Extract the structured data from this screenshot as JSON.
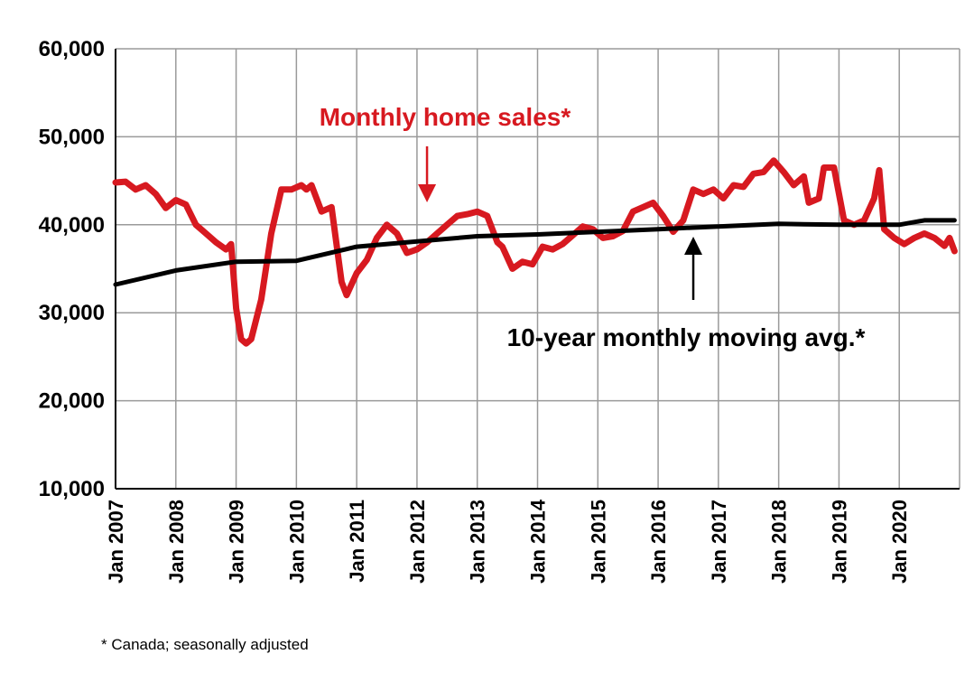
{
  "chart_data": {
    "type": "line",
    "title": "",
    "xlabel": "",
    "ylabel": "",
    "ylim": [
      10000,
      60000
    ],
    "grid": true,
    "x_start": "2007-01",
    "x_end": "2020-12",
    "y_ticks": [
      10000,
      20000,
      30000,
      40000,
      50000,
      60000
    ],
    "y_tick_labels": [
      "10,000",
      "20,000",
      "30,000",
      "40,000",
      "50,000",
      "60,000"
    ],
    "x_tick_labels": [
      "Jan 2007",
      "Jan 2008",
      "Jan 2009",
      "Jan 2010",
      "Jan 2011",
      "Jan 2012",
      "Jan 2013",
      "Jan 2014",
      "Jan 2015",
      "Jan 2016",
      "Jan 2017",
      "Jan 2018",
      "Jan 2019",
      "Jan 2020"
    ],
    "series": [
      {
        "name": "Monthly home sales*",
        "color": "#d71920",
        "points": [
          [
            "2007-01",
            44800
          ],
          [
            "2007-03",
            44900
          ],
          [
            "2007-05",
            44000
          ],
          [
            "2007-07",
            44500
          ],
          [
            "2007-09",
            43500
          ],
          [
            "2007-11",
            41900
          ],
          [
            "2008-01",
            42800
          ],
          [
            "2008-03",
            42300
          ],
          [
            "2008-05",
            40000
          ],
          [
            "2008-07",
            39000
          ],
          [
            "2008-09",
            38000
          ],
          [
            "2008-11",
            37200
          ],
          [
            "2008-12",
            37800
          ],
          [
            "2009-01",
            30500
          ],
          [
            "2009-02",
            27000
          ],
          [
            "2009-03",
            26500
          ],
          [
            "2009-04",
            27000
          ],
          [
            "2009-06",
            31500
          ],
          [
            "2009-08",
            39000
          ],
          [
            "2009-10",
            44000
          ],
          [
            "2009-12",
            44000
          ],
          [
            "2010-02",
            44500
          ],
          [
            "2010-03",
            44000
          ],
          [
            "2010-04",
            44500
          ],
          [
            "2010-06",
            41500
          ],
          [
            "2010-08",
            42000
          ],
          [
            "2010-10",
            33500
          ],
          [
            "2010-11",
            32000
          ],
          [
            "2011-01",
            34500
          ],
          [
            "2011-03",
            36000
          ],
          [
            "2011-05",
            38500
          ],
          [
            "2011-07",
            40000
          ],
          [
            "2011-09",
            39000
          ],
          [
            "2011-11",
            36800
          ],
          [
            "2012-01",
            37200
          ],
          [
            "2012-03",
            38000
          ],
          [
            "2012-05",
            39000
          ],
          [
            "2012-07",
            40000
          ],
          [
            "2012-09",
            41000
          ],
          [
            "2012-11",
            41200
          ],
          [
            "2013-01",
            41500
          ],
          [
            "2013-03",
            41000
          ],
          [
            "2013-05",
            38000
          ],
          [
            "2013-06",
            37500
          ],
          [
            "2013-08",
            35000
          ],
          [
            "2013-10",
            35800
          ],
          [
            "2013-12",
            35500
          ],
          [
            "2014-02",
            37500
          ],
          [
            "2014-04",
            37200
          ],
          [
            "2014-06",
            37800
          ],
          [
            "2014-08",
            38800
          ],
          [
            "2014-10",
            39800
          ],
          [
            "2014-12",
            39500
          ],
          [
            "2015-02",
            38500
          ],
          [
            "2015-04",
            38700
          ],
          [
            "2015-06",
            39300
          ],
          [
            "2015-08",
            41500
          ],
          [
            "2015-10",
            42000
          ],
          [
            "2015-12",
            42500
          ],
          [
            "2016-02",
            41000
          ],
          [
            "2016-04",
            39200
          ],
          [
            "2016-06",
            40500
          ],
          [
            "2016-08",
            44000
          ],
          [
            "2016-10",
            43500
          ],
          [
            "2016-12",
            44000
          ],
          [
            "2017-02",
            43000
          ],
          [
            "2017-04",
            44500
          ],
          [
            "2017-06",
            44300
          ],
          [
            "2017-08",
            45800
          ],
          [
            "2017-10",
            46000
          ],
          [
            "2017-12",
            47300
          ],
          [
            "2018-02",
            46000
          ],
          [
            "2018-04",
            44500
          ],
          [
            "2018-06",
            45500
          ],
          [
            "2018-07",
            42500
          ],
          [
            "2018-09",
            43000
          ],
          [
            "2018-10",
            46500
          ],
          [
            "2018-12",
            46500
          ],
          [
            "2019-02",
            40500
          ],
          [
            "2019-04",
            40000
          ],
          [
            "2019-06",
            40500
          ],
          [
            "2019-08",
            43000
          ],
          [
            "2019-09",
            46200
          ],
          [
            "2019-10",
            39500
          ],
          [
            "2019-12",
            38500
          ],
          [
            "2020-02",
            37800
          ],
          [
            "2020-04",
            38500
          ],
          [
            "2020-06",
            39000
          ],
          [
            "2020-08",
            38500
          ],
          [
            "2020-10",
            37600
          ],
          [
            "2020-11",
            38500
          ],
          [
            "2020-12",
            37000
          ]
        ]
      },
      {
        "name": "10-year monthly moving avg.*",
        "color": "#000000",
        "points": [
          [
            "2007-01",
            33200
          ],
          [
            "2008-01",
            34800
          ],
          [
            "2009-01",
            35800
          ],
          [
            "2010-01",
            35900
          ],
          [
            "2011-01",
            37500
          ],
          [
            "2012-01",
            38100
          ],
          [
            "2013-01",
            38700
          ],
          [
            "2014-01",
            38900
          ],
          [
            "2015-01",
            39200
          ],
          [
            "2016-01",
            39500
          ],
          [
            "2017-01",
            39800
          ],
          [
            "2018-01",
            40100
          ],
          [
            "2019-01",
            40000
          ],
          [
            "2020-01",
            40000
          ],
          [
            "2020-06",
            40500
          ],
          [
            "2020-12",
            40500
          ]
        ]
      }
    ],
    "annotations": [
      {
        "text": "Monthly home sales*",
        "arrow_to": [
          "2012-03",
          41000
        ]
      },
      {
        "text": "10-year monthly moving avg.*",
        "arrow_to": [
          "2016-08",
          39700
        ]
      }
    ],
    "footnote": "* Canada; seasonally adjusted"
  }
}
